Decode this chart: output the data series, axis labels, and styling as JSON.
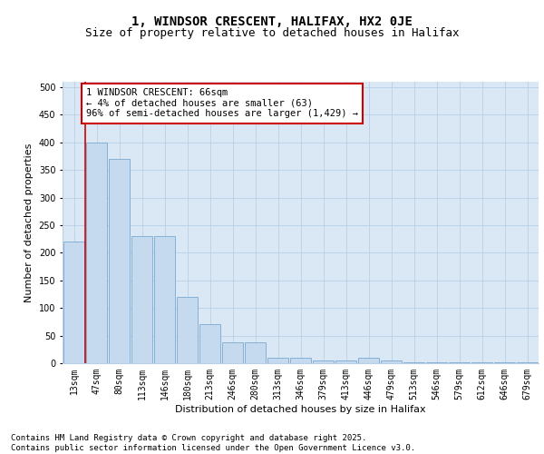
{
  "title_line1": "1, WINDSOR CRESCENT, HALIFAX, HX2 0JE",
  "title_line2": "Size of property relative to detached houses in Halifax",
  "xlabel": "Distribution of detached houses by size in Halifax",
  "ylabel": "Number of detached properties",
  "categories": [
    "13sqm",
    "47sqm",
    "80sqm",
    "113sqm",
    "146sqm",
    "180sqm",
    "213sqm",
    "246sqm",
    "280sqm",
    "313sqm",
    "346sqm",
    "379sqm",
    "413sqm",
    "446sqm",
    "479sqm",
    "513sqm",
    "546sqm",
    "579sqm",
    "612sqm",
    "646sqm",
    "679sqm"
  ],
  "values": [
    220,
    400,
    370,
    230,
    230,
    120,
    70,
    38,
    38,
    10,
    10,
    5,
    5,
    10,
    5,
    2,
    2,
    2,
    1,
    1,
    1
  ],
  "bar_color": "#c5d9ef",
  "bar_edge_color": "#7aaad0",
  "vline_color": "#cc0000",
  "annotation_text": "1 WINDSOR CRESCENT: 66sqm\n← 4% of detached houses are smaller (63)\n96% of semi-detached houses are larger (1,429) →",
  "annotation_box_color": "#ffffff",
  "annotation_box_edge": "#cc0000",
  "ylim": [
    0,
    510
  ],
  "yticks": [
    0,
    50,
    100,
    150,
    200,
    250,
    300,
    350,
    400,
    450,
    500
  ],
  "grid_color": "#b8cfe8",
  "background_color": "#dae8f5",
  "footer_text": "Contains HM Land Registry data © Crown copyright and database right 2025.\nContains public sector information licensed under the Open Government Licence v3.0.",
  "title_fontsize": 10,
  "subtitle_fontsize": 9,
  "axis_label_fontsize": 8,
  "tick_fontsize": 7,
  "annotation_fontsize": 7.5,
  "footer_fontsize": 6.5
}
